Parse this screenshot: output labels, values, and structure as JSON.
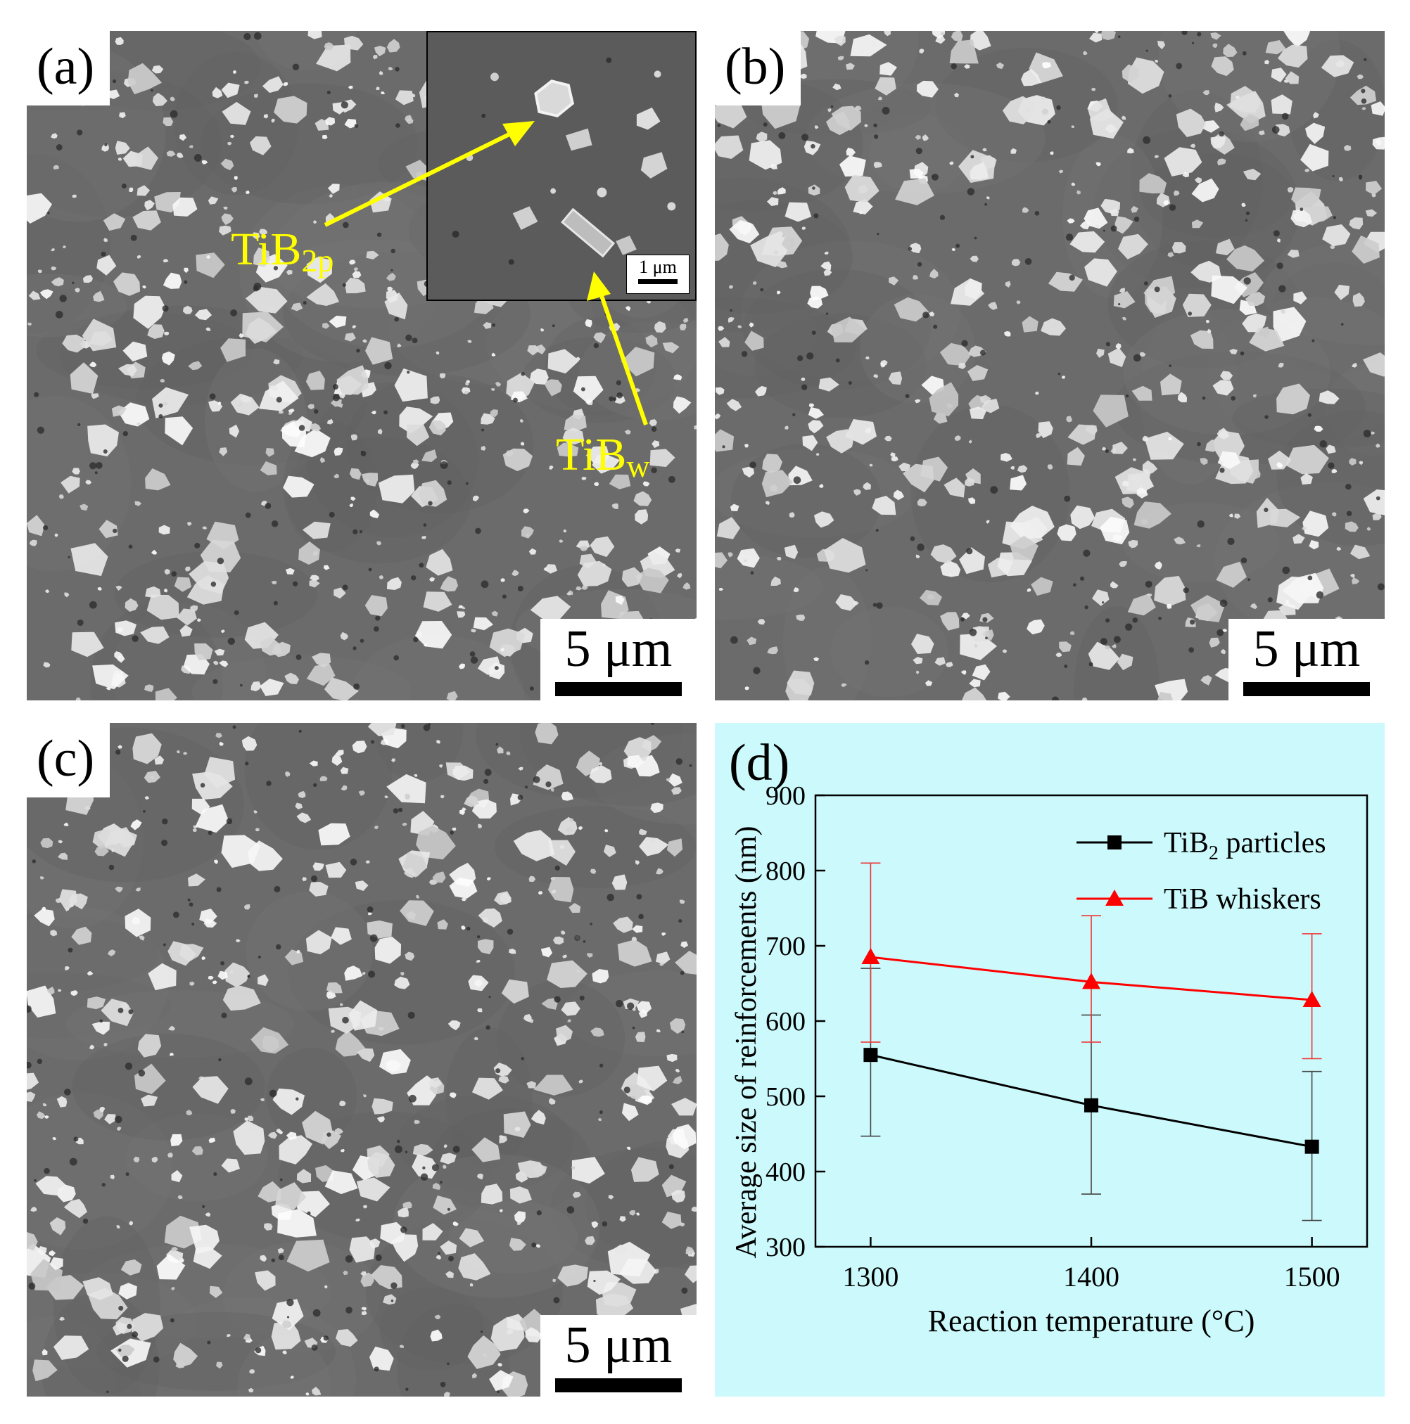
{
  "panels": {
    "a": {
      "label": "(a)",
      "scale_bar": "5 μm",
      "inset_scale_bar": "1 μm",
      "annotations": {
        "tib2p_main": "TiB",
        "tib2p_sub": "2p",
        "tibw_main": "TiB",
        "tibw_sub": "w"
      }
    },
    "b": {
      "label": "(b)",
      "scale_bar": "5 μm"
    },
    "c": {
      "label": "(c)",
      "scale_bar": "5 μm"
    },
    "d": {
      "label": "(d)"
    }
  },
  "colors": {
    "annotation": "#ffff00",
    "chart_background": "#ccf9fb",
    "series_black": "#000000",
    "series_red": "#ff0000"
  },
  "chart_data": {
    "type": "line",
    "title": "",
    "xlabel": "Reaction temperature (°C)",
    "ylabel": "Average size of reinforcements (nm)",
    "x": [
      1300,
      1400,
      1500
    ],
    "xlim": [
      1275,
      1525
    ],
    "ylim": [
      300,
      900
    ],
    "xticks": [
      1300,
      1400,
      1500
    ],
    "yticks": [
      300,
      400,
      500,
      600,
      700,
      800,
      900
    ],
    "legend_position": "top-right",
    "series": [
      {
        "name": "TiB₂ particles",
        "name_main": "TiB",
        "name_sub": "2",
        "name_rest": " particles",
        "marker": "square",
        "color": "#000000",
        "values": [
          555,
          488,
          433
        ],
        "err_low": [
          447,
          370,
          335
        ],
        "err_high": [
          670,
          608,
          533
        ]
      },
      {
        "name": "TiB whiskers",
        "marker": "triangle",
        "color": "#ff0000",
        "values": [
          685,
          652,
          628
        ],
        "err_low": [
          572,
          572,
          550
        ],
        "err_high": [
          810,
          740,
          716
        ]
      }
    ]
  }
}
